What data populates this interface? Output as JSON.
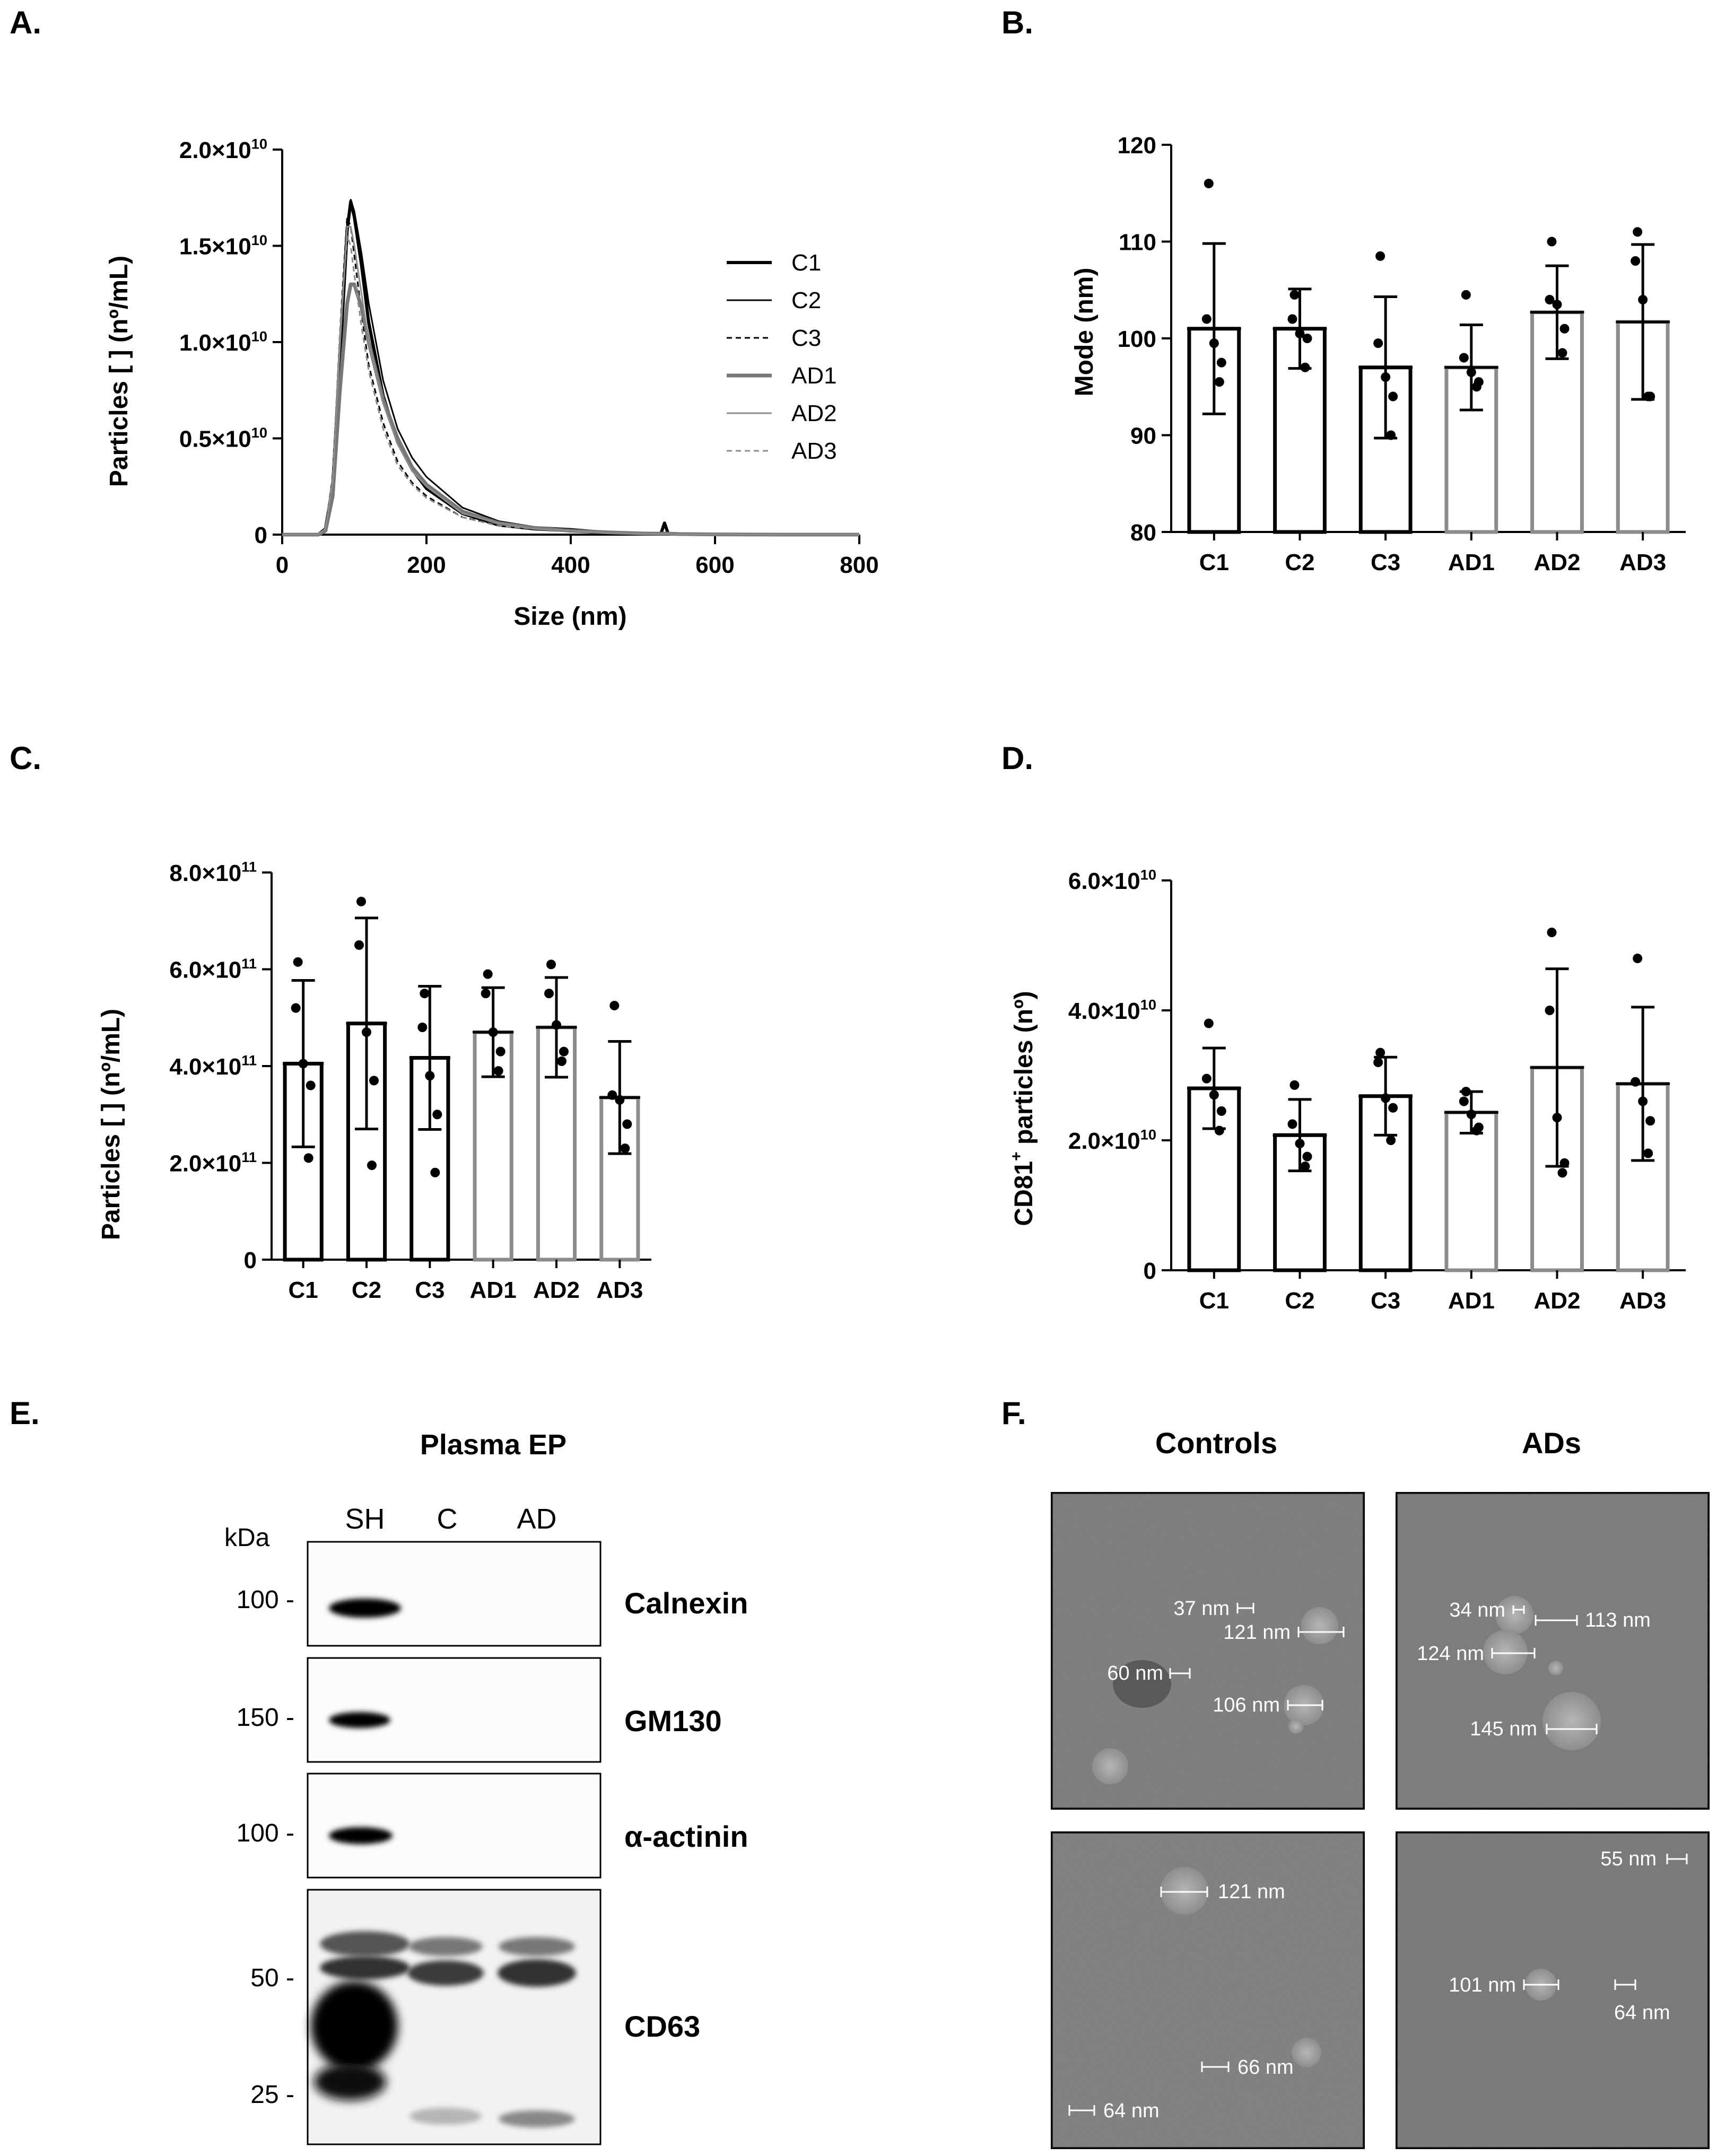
{
  "panel_labels": {
    "a": "A.",
    "b": "B.",
    "c": "C.",
    "d": "D.",
    "e": "E.",
    "f": "F."
  },
  "colors": {
    "control": "#000000",
    "ad": "#8c8c8c"
  },
  "chart_data": [
    {
      "id": "A",
      "type": "line",
      "xlabel": "Size (nm)",
      "ylabel": "Particles [ ] (nº/mL)",
      "xlim": [
        0,
        800
      ],
      "ylim": [
        0,
        20000000000.0
      ],
      "x_ticks": [
        "0",
        "200",
        "400",
        "600",
        "800"
      ],
      "y_ticks": [
        {
          "value": 0,
          "mantissa": "0",
          "exp": ""
        },
        {
          "value": 5000000000.0,
          "mantissa": "0.5×10",
          "exp": "10"
        },
        {
          "value": 10000000000.0,
          "mantissa": "1.0×10",
          "exp": "10"
        },
        {
          "value": 15000000000.0,
          "mantissa": "1.5×10",
          "exp": "10"
        },
        {
          "value": 20000000000.0,
          "mantissa": "2.0×10",
          "exp": "10"
        }
      ],
      "x": [
        0,
        50,
        60,
        70,
        80,
        90,
        95,
        100,
        110,
        120,
        140,
        160,
        180,
        200,
        250,
        300,
        350,
        400,
        450,
        500,
        525,
        530,
        535,
        550,
        600,
        700,
        800
      ],
      "series": [
        {
          "name": "C1",
          "style": "thick-black",
          "values": [
            0,
            0,
            0.03,
            0.25,
            0.9,
            1.58,
            1.73,
            1.65,
            1.4,
            1.1,
            0.72,
            0.48,
            0.34,
            0.24,
            0.11,
            0.05,
            0.03,
            0.02,
            0.01,
            0.005,
            0.005,
            0.06,
            0.005,
            0.003,
            0.001,
            0,
            0
          ]
        },
        {
          "name": "C2",
          "style": "thin-black",
          "values": [
            0,
            0,
            0.03,
            0.3,
            1.0,
            1.62,
            1.74,
            1.68,
            1.46,
            1.2,
            0.8,
            0.55,
            0.4,
            0.3,
            0.14,
            0.07,
            0.04,
            0.03,
            0.015,
            0.008,
            0.005,
            0.005,
            0.005,
            0.003,
            0.001,
            0,
            0
          ]
        },
        {
          "name": "C3",
          "style": "dash-black",
          "values": [
            0,
            0,
            0.03,
            0.3,
            1.05,
            1.65,
            1.6,
            1.45,
            1.15,
            0.88,
            0.58,
            0.38,
            0.27,
            0.2,
            0.09,
            0.05,
            0.03,
            0.02,
            0.01,
            0.005,
            0.004,
            0.004,
            0.004,
            0.002,
            0.001,
            0,
            0
          ]
        },
        {
          "name": "AD1",
          "style": "thick-gray",
          "values": [
            0,
            0,
            0.02,
            0.2,
            0.75,
            1.2,
            1.3,
            1.3,
            1.18,
            1.0,
            0.7,
            0.5,
            0.35,
            0.26,
            0.12,
            0.06,
            0.035,
            0.02,
            0.012,
            0.006,
            0.005,
            0.005,
            0.005,
            0.003,
            0.001,
            0,
            0
          ]
        },
        {
          "name": "AD2",
          "style": "thin-gray",
          "values": [
            0,
            0,
            0.03,
            0.28,
            0.98,
            1.6,
            1.6,
            1.5,
            1.25,
            1.0,
            0.68,
            0.47,
            0.33,
            0.25,
            0.11,
            0.06,
            0.03,
            0.02,
            0.01,
            0.005,
            0.004,
            0.004,
            0.004,
            0.002,
            0.001,
            0,
            0
          ]
        },
        {
          "name": "AD3",
          "style": "dash-gray",
          "values": [
            0,
            0,
            0.03,
            0.3,
            1.05,
            1.55,
            1.5,
            1.35,
            1.08,
            0.85,
            0.55,
            0.36,
            0.26,
            0.19,
            0.09,
            0.045,
            0.03,
            0.02,
            0.01,
            0.005,
            0.004,
            0.004,
            0.004,
            0.002,
            0.001,
            0,
            0
          ]
        }
      ]
    },
    {
      "id": "B",
      "type": "bar",
      "ylabel": "Mode (nm)",
      "ylim": [
        80,
        120
      ],
      "y_ticks": [
        "80",
        "90",
        "100",
        "110",
        "120"
      ],
      "categories": [
        "C1",
        "C2",
        "C3",
        "AD1",
        "AD2",
        "AD3"
      ],
      "values": [
        101,
        101,
        97,
        97,
        102.7,
        101.7
      ],
      "errors": [
        8.8,
        4.1,
        7.3,
        4.4,
        4.8,
        8.0
      ],
      "points": [
        [
          116,
          102,
          99.5,
          97.5,
          95.5
        ],
        [
          104.5,
          102,
          100.5,
          100,
          97
        ],
        [
          108.5,
          99.5,
          96,
          94,
          90
        ],
        [
          104.5,
          98,
          96.5,
          95.5,
          95
        ],
        [
          110,
          104,
          103.5,
          101,
          98.5
        ],
        [
          111,
          108,
          104,
          94,
          94
        ]
      ]
    },
    {
      "id": "C",
      "type": "bar",
      "ylabel": "Particles [ ] (nº/mL)",
      "ylim": [
        0,
        800000000000.0
      ],
      "y_ticks": [
        {
          "value": 0,
          "mantissa": "0",
          "exp": ""
        },
        {
          "value": 200000000000.0,
          "mantissa": "2.0×10",
          "exp": "11"
        },
        {
          "value": 400000000000.0,
          "mantissa": "4.0×10",
          "exp": "11"
        },
        {
          "value": 600000000000.0,
          "mantissa": "6.0×10",
          "exp": "11"
        },
        {
          "value": 800000000000.0,
          "mantissa": "8.0×10",
          "exp": "11"
        }
      ],
      "categories": [
        "C1",
        "C2",
        "C3",
        "AD1",
        "AD2",
        "AD3"
      ],
      "values": [
        405000000000.0,
        488000000000.0,
        417000000000.0,
        470000000000.0,
        480000000000.0,
        335000000000.0
      ],
      "errors": [
        172000000000.0,
        218000000000.0,
        148000000000.0,
        92000000000.0,
        103000000000.0,
        116000000000.0
      ],
      "points": [
        [
          615000000000.0,
          520000000000.0,
          405000000000.0,
          360000000000.0,
          210000000000.0
        ],
        [
          740000000000.0,
          650000000000.0,
          470000000000.0,
          370000000000.0,
          195000000000.0
        ],
        [
          550000000000.0,
          480000000000.0,
          380000000000.0,
          300000000000.0,
          180000000000.0
        ],
        [
          590000000000.0,
          550000000000.0,
          470000000000.0,
          430000000000.0,
          390000000000.0
        ],
        [
          610000000000.0,
          550000000000.0,
          485000000000.0,
          430000000000.0,
          410000000000.0
        ],
        [
          525000000000.0,
          340000000000.0,
          330000000000.0,
          280000000000.0,
          230000000000.0
        ]
      ]
    },
    {
      "id": "D",
      "type": "bar",
      "ylabel_main": "CD81",
      "ylabel_sup": "+",
      "ylabel_rest": " particles (nº)",
      "ylim": [
        0,
        60000000000.0
      ],
      "y_ticks": [
        {
          "value": 0,
          "mantissa": "0",
          "exp": ""
        },
        {
          "value": 20000000000.0,
          "mantissa": "2.0×10",
          "exp": "10"
        },
        {
          "value": 40000000000.0,
          "mantissa": "4.0×10",
          "exp": "10"
        },
        {
          "value": 60000000000.0,
          "mantissa": "6.0×10",
          "exp": "10"
        }
      ],
      "categories": [
        "C1",
        "C2",
        "C3",
        "AD1",
        "AD2",
        "AD3"
      ],
      "values": [
        28000000000.0,
        20800000000.0,
        26800000000.0,
        24300000000.0,
        31200000000.0,
        28700000000.0
      ],
      "errors": [
        6200000000.0,
        5500000000.0,
        6000000000.0,
        3200000000.0,
        15200000000.0,
        11800000000.0
      ],
      "points": [
        [
          38000000000.0,
          29500000000.0,
          27000000000.0,
          24500000000.0,
          21500000000.0
        ],
        [
          28500000000.0,
          22500000000.0,
          19500000000.0,
          17500000000.0,
          16000000000.0
        ],
        [
          33500000000.0,
          32000000000.0,
          26500000000.0,
          25000000000.0,
          20000000000.0
        ],
        [
          27500000000.0,
          26000000000.0,
          24000000000.0,
          22000000000.0,
          21500000000.0
        ],
        [
          52000000000.0,
          40000000000.0,
          23500000000.0,
          16500000000.0,
          15000000000.0
        ],
        [
          48000000000.0,
          29000000000.0,
          26000000000.0,
          23000000000.0,
          18000000000.0
        ]
      ]
    }
  ],
  "panel_e": {
    "title": "Plasma EP",
    "kda_label": "kDa",
    "lanes": [
      "SH",
      "C",
      "AD"
    ],
    "blots": [
      {
        "name": "Calnexin",
        "marker": "100 -"
      },
      {
        "name": "GM130",
        "marker": "150 -"
      },
      {
        "name": "α-actinin",
        "marker": "100 -"
      },
      {
        "name": "CD63",
        "markers": [
          "50 -",
          "25 -"
        ]
      }
    ]
  },
  "panel_f": {
    "col_titles": [
      "Controls",
      "ADs"
    ],
    "images": [
      {
        "name": "controls-top",
        "labels": [
          "37 nm",
          "121 nm",
          "60 nm",
          "106 nm"
        ]
      },
      {
        "name": "ads-top",
        "labels": [
          "34 nm",
          "113 nm",
          "124 nm",
          "145 nm"
        ]
      },
      {
        "name": "controls-bottom",
        "labels": [
          "121 nm",
          "66 nm",
          "64 nm"
        ]
      },
      {
        "name": "ads-bottom",
        "labels": [
          "55 nm",
          "101 nm",
          "64 nm"
        ]
      }
    ]
  }
}
